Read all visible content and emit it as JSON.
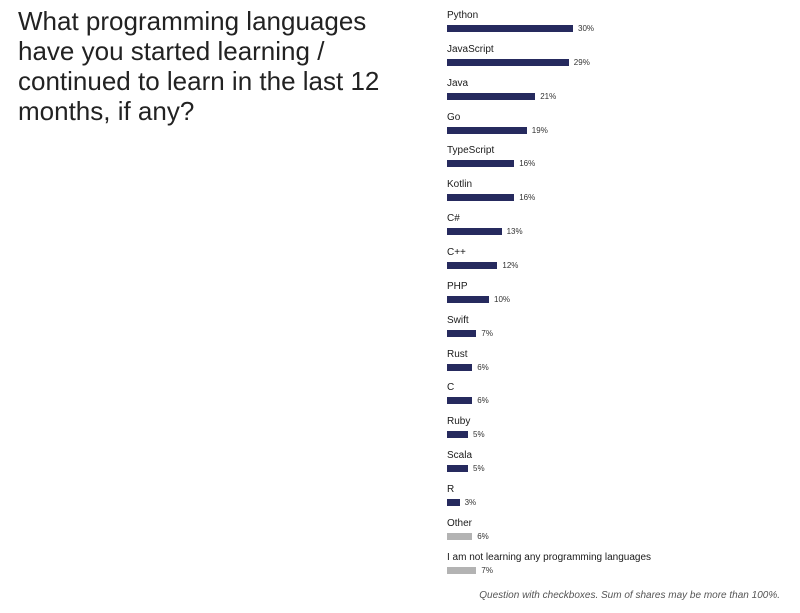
{
  "title": "What programming languages have you started learning / continued to learn in the last 12 months, if any?",
  "footnote": "Question with checkboxes. Sum of shares may be more than 100%.",
  "colors": {
    "primary_bar": "#262a5e",
    "secondary_bar": "#b3b3b3"
  },
  "chart_data": {
    "type": "bar",
    "orientation": "horizontal",
    "unit": "%",
    "xlim": [
      0,
      30
    ],
    "grid": false,
    "categories": [
      "Python",
      "JavaScript",
      "Java",
      "Go",
      "TypeScript",
      "Kotlin",
      "C#",
      "C++",
      "PHP",
      "Swift",
      "Rust",
      "C",
      "Ruby",
      "Scala",
      "R",
      "Other",
      "I am not learning any programming languages"
    ],
    "values": [
      30,
      29,
      21,
      19,
      16,
      16,
      13,
      12,
      10,
      7,
      6,
      6,
      5,
      5,
      3,
      6,
      7
    ],
    "value_labels": [
      "30%",
      "29%",
      "21%",
      "19%",
      "16%",
      "16%",
      "13%",
      "12%",
      "10%",
      "7%",
      "6%",
      "6%",
      "5%",
      "5%",
      "3%",
      "6%",
      "7%"
    ],
    "bar_colors": [
      "primary",
      "primary",
      "primary",
      "primary",
      "primary",
      "primary",
      "primary",
      "primary",
      "primary",
      "primary",
      "primary",
      "primary",
      "primary",
      "primary",
      "primary",
      "secondary",
      "secondary"
    ]
  }
}
